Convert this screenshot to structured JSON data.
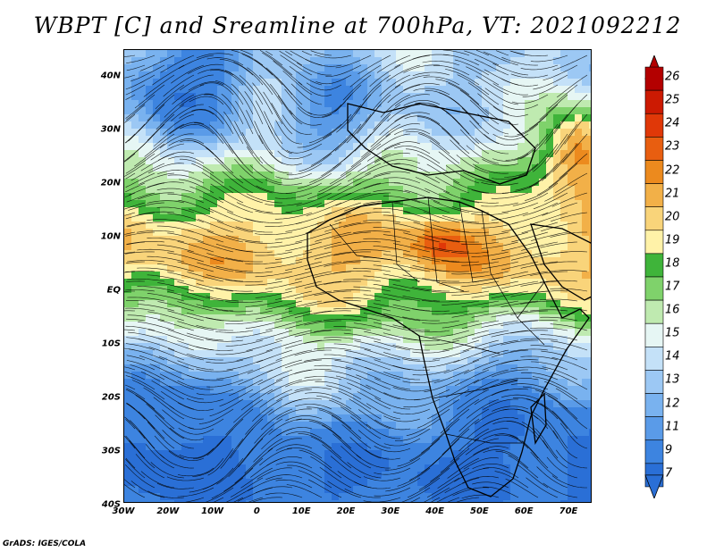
{
  "title": "WBPT [C] and Sreamline at 700hPa, VT: 2021092212",
  "credit": "GrADS: IGES/COLA",
  "map": {
    "lat_labels": [
      "40N",
      "30N",
      "20N",
      "10N",
      "EQ",
      "10S",
      "20S",
      "30S",
      "40S"
    ],
    "lon_labels": [
      "30W",
      "20W",
      "10W",
      "0",
      "10E",
      "20E",
      "30E",
      "40E",
      "50E",
      "60E",
      "70E"
    ],
    "lat_range": [
      -40,
      45
    ],
    "lon_range": [
      -30,
      75
    ]
  },
  "colorbar": {
    "labels": [
      "7",
      "9",
      "11",
      "12",
      "13",
      "14",
      "15",
      "16",
      "17",
      "18",
      "19",
      "20",
      "21",
      "22",
      "23",
      "24",
      "25",
      "26"
    ],
    "colors": [
      "#2a6fd6",
      "#3d84e0",
      "#5a9be8",
      "#79b2ef",
      "#9cc8f4",
      "#c4e1f8",
      "#e6f6f4",
      "#bfeab0",
      "#7fd26b",
      "#3fb43a",
      "#fff2a8",
      "#f9d47a",
      "#f2b048",
      "#ec8a1e",
      "#e85e10",
      "#e03808",
      "#cc1a02",
      "#b30000"
    ]
  },
  "legend_items": [
    "wet-bulb potential temperature shading",
    "700hPa streamlines"
  ]
}
